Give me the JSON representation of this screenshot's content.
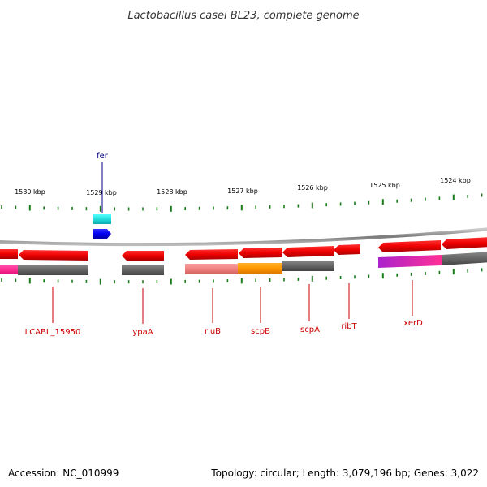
{
  "title": "Lactobacillus casei BL23, complete genome",
  "footer": {
    "accession": "Accession: NC_010999",
    "info": "Topology: circular; Length: 3,079,196 bp; Genes: 3,022"
  },
  "colors": {
    "backbone": "#8a8a8a",
    "tick": "#1a7a1a",
    "label_red": "#cc0000",
    "label_blue": "#000080",
    "gene_red": "#ff0000",
    "gene_gray": "#666666",
    "gene_pink": "#ff3399",
    "gene_salmon": "#f08080",
    "gene_orange": "#ff9900",
    "gene_magenta": "#cc33cc",
    "gene_cyan": "#33cccc",
    "gene_blue": "#0000ee"
  },
  "ticks": [
    {
      "label": "1530 kbp"
    },
    {
      "label": "1529 kbp"
    },
    {
      "label": "1528 kbp"
    },
    {
      "label": "1527 kbp"
    },
    {
      "label": "1526 kbp"
    },
    {
      "label": "1525 kbp"
    },
    {
      "label": "1524 kbp"
    }
  ],
  "gene_labels": [
    {
      "name": "fer"
    },
    {
      "name": "LCABL_15950"
    },
    {
      "name": "ypaA"
    },
    {
      "name": "rluB"
    },
    {
      "name": "scpB"
    },
    {
      "name": "scpA"
    },
    {
      "name": "ribT"
    },
    {
      "name": "xerD"
    }
  ]
}
